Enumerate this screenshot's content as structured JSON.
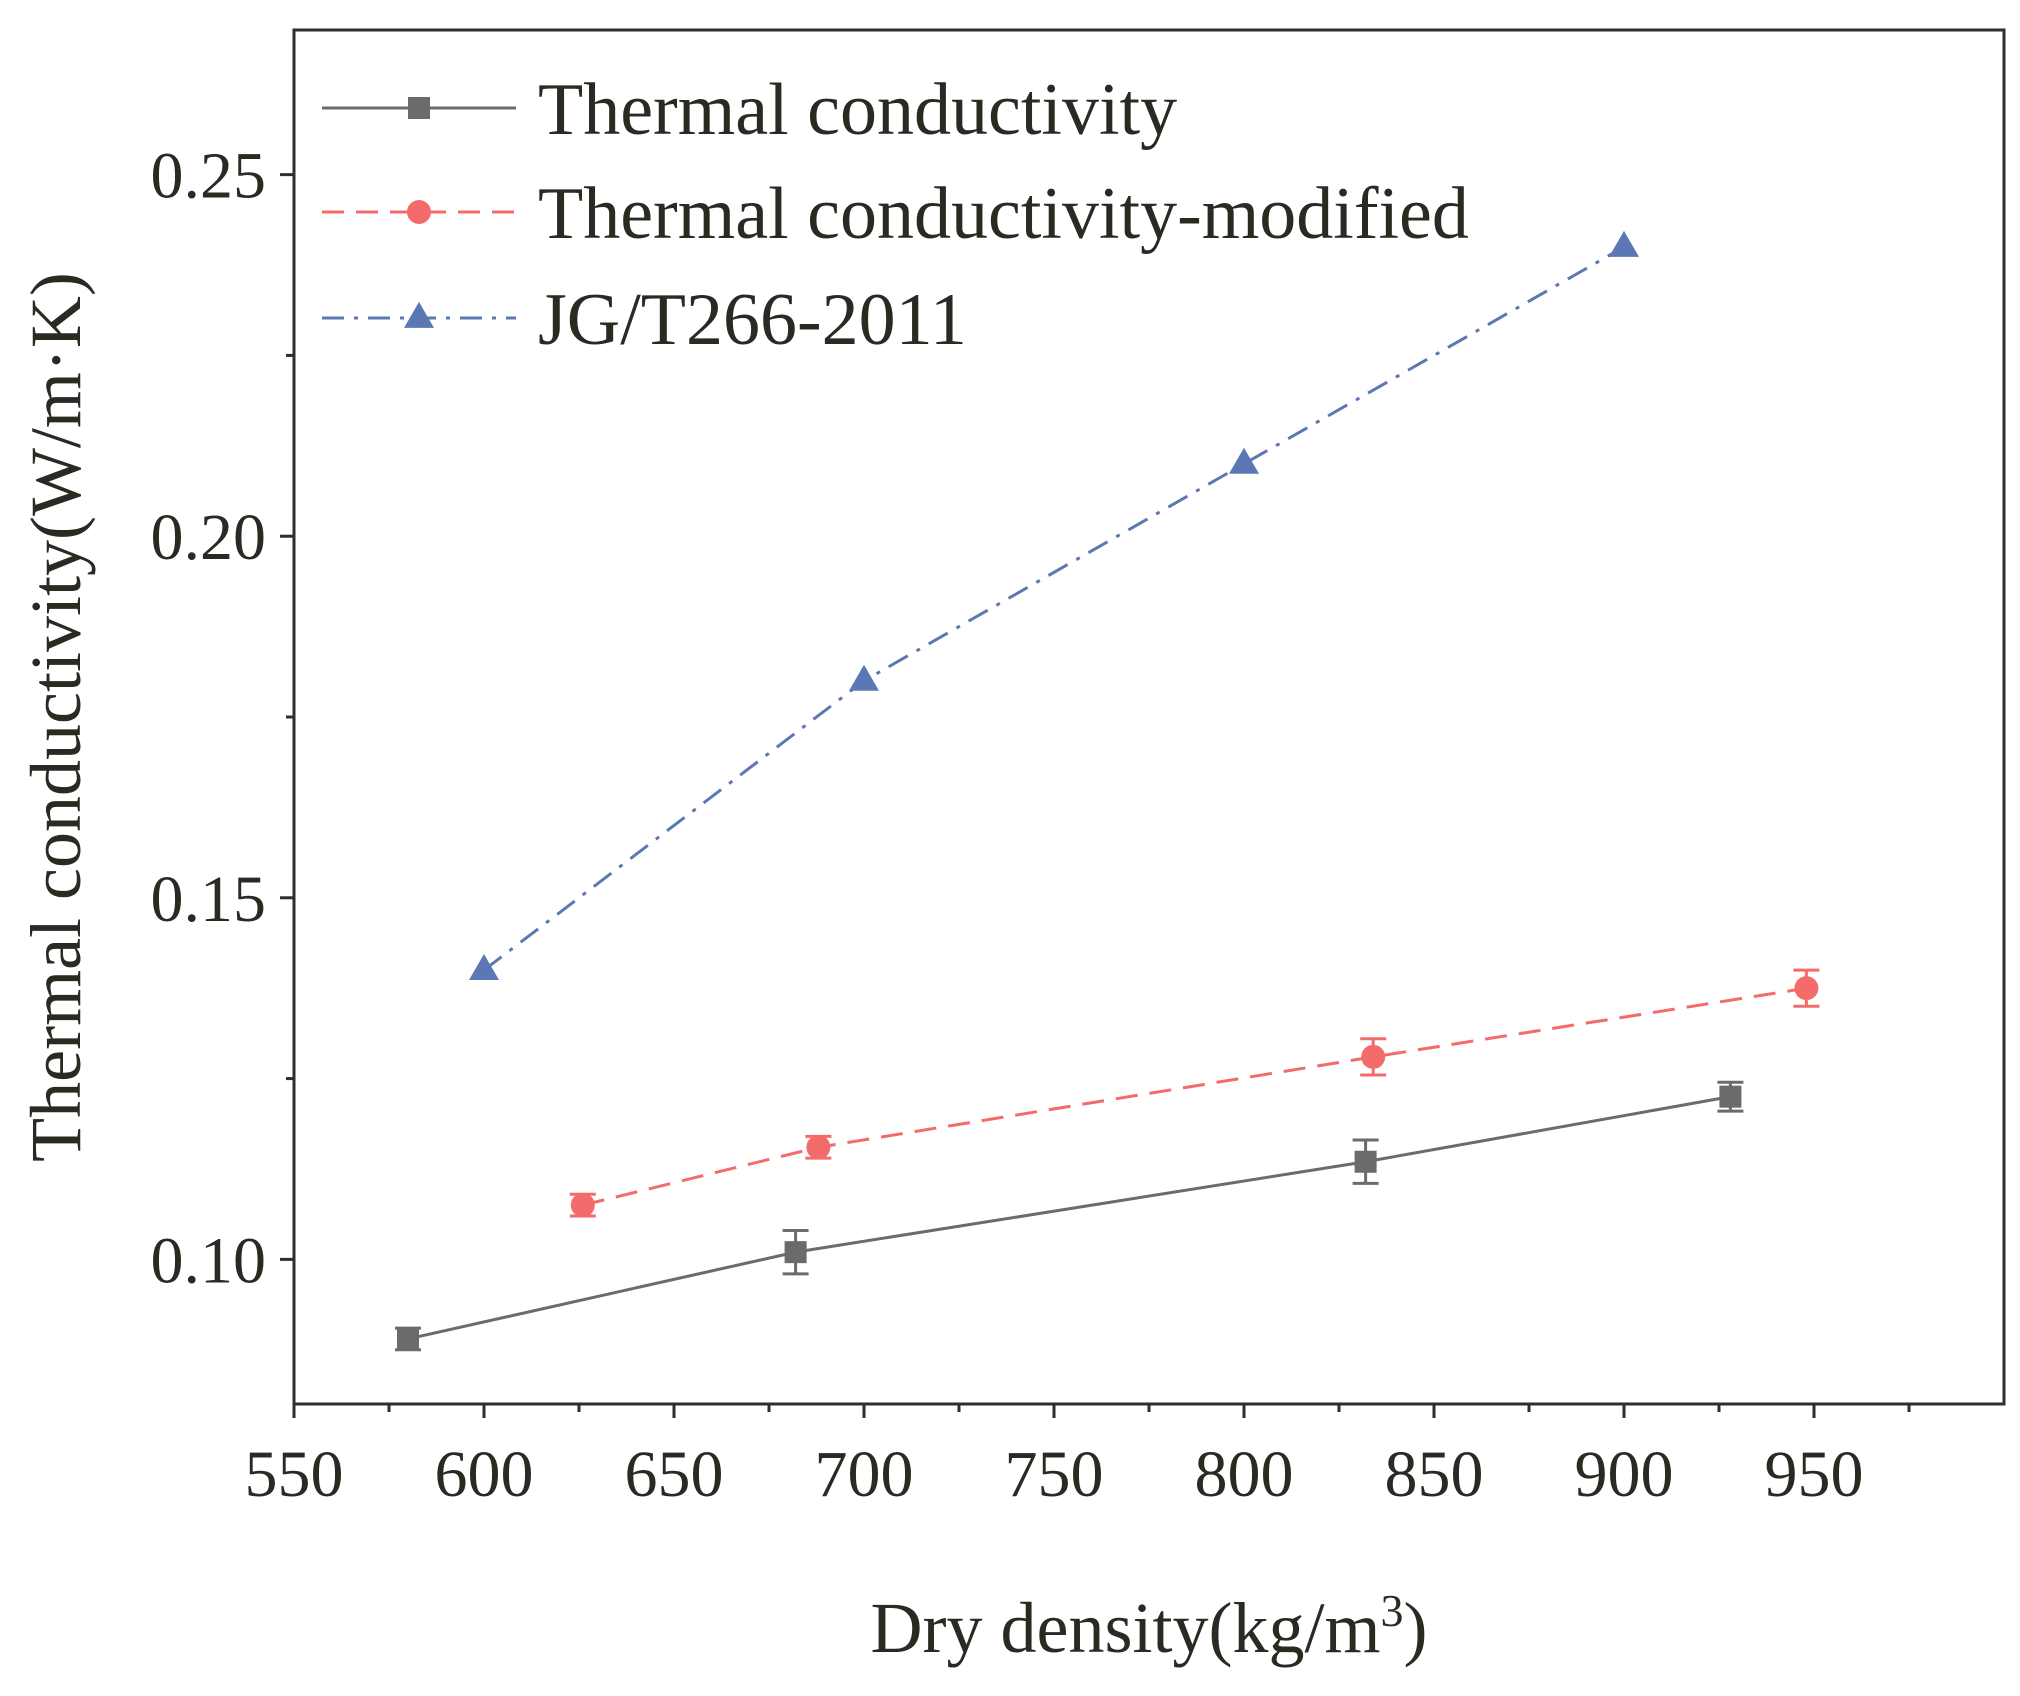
{
  "chart_data": {
    "type": "line",
    "xlabel": "Dry density(kg/m",
    "xlabel_sup": "3",
    "xlabel_suffix": ")",
    "ylabel": "Thermal conductivity(W/m·K)",
    "xlim": [
      550,
      1000
    ],
    "ylim": [
      0.08,
      0.27
    ],
    "x_ticks": [
      550,
      600,
      650,
      700,
      750,
      800,
      850,
      900,
      950
    ],
    "y_ticks": [
      0.1,
      0.15,
      0.2,
      0.25
    ],
    "y_tick_labels": [
      "0.10",
      "0.15",
      "0.20",
      "0.25"
    ],
    "legend_position": "top-left",
    "grid": false,
    "series": [
      {
        "name": "Thermal conductivity",
        "color": "#6b6b6b",
        "marker": "square",
        "line_style": "solid",
        "x": [
          580,
          682,
          832,
          928
        ],
        "y": [
          0.089,
          0.101,
          0.1135,
          0.1225
        ],
        "error": [
          0.0015,
          0.003,
          0.003,
          0.002
        ]
      },
      {
        "name": "Thermal conductivity-modified",
        "color": "#f36b6b",
        "marker": "circle",
        "line_style": "dashed",
        "x": [
          626,
          688,
          834,
          948
        ],
        "y": [
          0.1075,
          0.1155,
          0.128,
          0.1375
        ],
        "error": [
          0.0015,
          0.0015,
          0.0025,
          0.0025
        ]
      },
      {
        "name": "JG/T266-2011",
        "color": "#5b78b4",
        "marker": "triangle",
        "line_style": "dashdot",
        "x": [
          600,
          700,
          800,
          900
        ],
        "y": [
          0.14,
          0.18,
          0.21,
          0.24
        ],
        "error": [
          0,
          0,
          0,
          0
        ]
      }
    ]
  }
}
